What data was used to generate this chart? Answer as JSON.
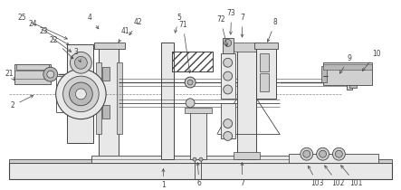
{
  "fig_width": 4.43,
  "fig_height": 2.1,
  "dpi": 100,
  "bg_color": "#ffffff",
  "lc": "#444444",
  "lc2": "#888888",
  "fc_light": "#e8e8e8",
  "fc_mid": "#d0d0d0",
  "fc_dark": "#b8b8b8",
  "fc_hatch": "#cccccc"
}
